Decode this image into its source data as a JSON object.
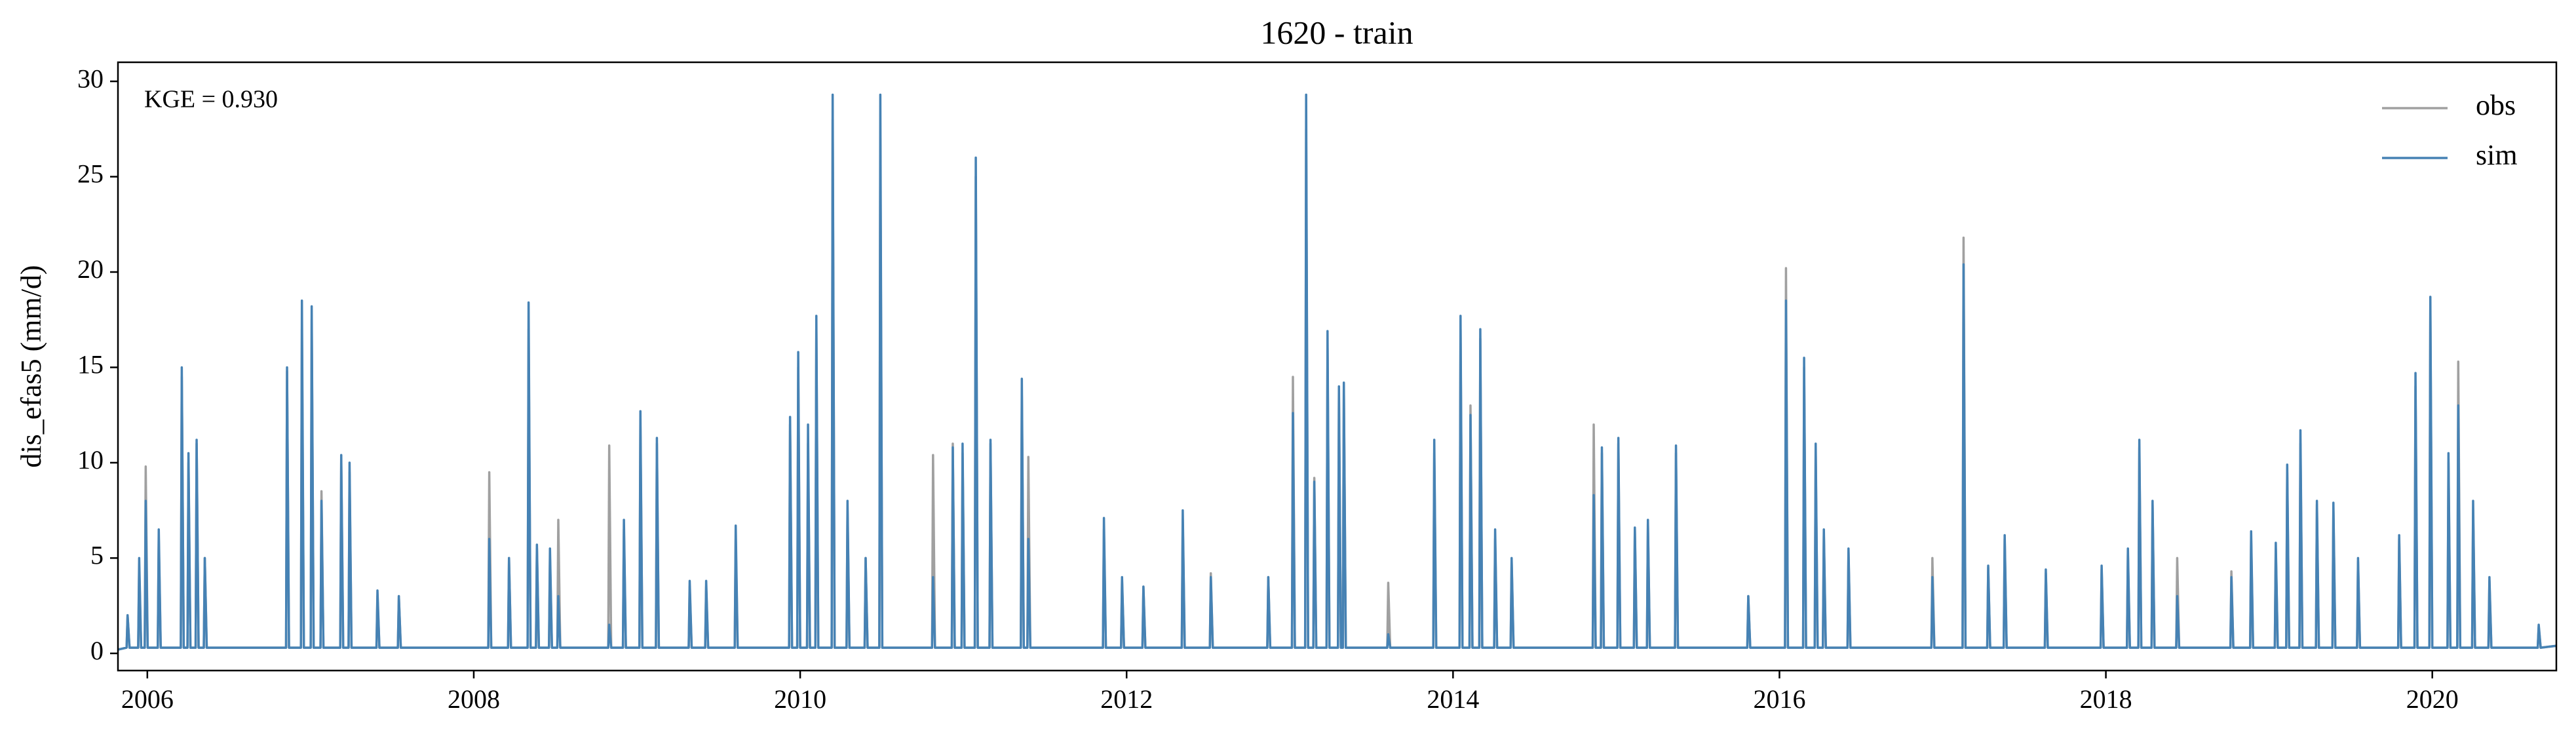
{
  "chart_data": {
    "type": "line",
    "title": "1620 - train",
    "ylabel": "dis_efas5 (mm/d)",
    "annotation": "KGE = 0.930",
    "legend": "upper right",
    "xlim": [
      2005.82,
      2020.76
    ],
    "xticks": [
      2006,
      2008,
      2010,
      2012,
      2014,
      2016,
      2018,
      2020
    ],
    "ylim": [
      -0.9,
      31
    ],
    "yticks": [
      0,
      5,
      10,
      15,
      20,
      25,
      30
    ],
    "x": [
      2005.82,
      2005.873,
      2005.879,
      2005.891,
      2005.944,
      2005.95,
      2005.962,
      2005.984,
      2005.99,
      2006.002,
      2006.064,
      2006.07,
      2006.082,
      2006.205,
      2006.211,
      2006.223,
      2006.246,
      2006.252,
      2006.264,
      2006.296,
      2006.302,
      2006.314,
      2006.346,
      2006.352,
      2006.364,
      2006.85,
      2006.856,
      2006.868,
      2006.941,
      2006.947,
      2006.959,
      2007.001,
      2007.007,
      2007.019,
      2007.061,
      2007.067,
      2007.079,
      2007.182,
      2007.188,
      2007.2,
      2007.233,
      2007.239,
      2007.251,
      2007.404,
      2007.41,
      2007.422,
      2007.535,
      2007.541,
      2007.553,
      2008.089,
      2008.095,
      2008.107,
      2008.21,
      2008.216,
      2008.228,
      2008.33,
      2008.336,
      2008.348,
      2008.381,
      2008.387,
      2008.399,
      2008.461,
      2008.467,
      2008.479,
      2008.512,
      2008.518,
      2008.53,
      2008.824,
      2008.83,
      2008.842,
      2008.914,
      2008.92,
      2008.932,
      2009.015,
      2009.021,
      2009.033,
      2009.116,
      2009.122,
      2009.134,
      2009.317,
      2009.323,
      2009.335,
      2009.418,
      2009.424,
      2009.436,
      2009.599,
      2009.605,
      2009.617,
      2009.932,
      2009.938,
      2009.95,
      2009.982,
      2009.988,
      2010.0,
      2010.042,
      2010.048,
      2010.06,
      2010.093,
      2010.099,
      2010.111,
      2010.193,
      2010.199,
      2010.211,
      2010.284,
      2010.29,
      2010.302,
      2010.395,
      2010.401,
      2010.413,
      2010.485,
      2010.491,
      2010.503,
      2010.808,
      2010.814,
      2010.826,
      2010.929,
      2010.935,
      2010.947,
      2010.989,
      2010.995,
      2011.007,
      2011.07,
      2011.076,
      2011.088,
      2011.16,
      2011.166,
      2011.178,
      2011.352,
      2011.358,
      2011.37,
      2011.392,
      2011.398,
      2011.41,
      2011.855,
      2011.861,
      2011.873,
      2011.966,
      2011.972,
      2011.984,
      2012.097,
      2012.103,
      2012.115,
      2012.338,
      2012.344,
      2012.356,
      2012.51,
      2012.516,
      2012.528,
      2012.862,
      2012.868,
      2012.88,
      2013.013,
      2013.019,
      2013.031,
      2013.094,
      2013.1,
      2013.112,
      2013.144,
      2013.15,
      2013.162,
      2013.225,
      2013.231,
      2013.243,
      2013.295,
      2013.301,
      2013.313,
      2013.325,
      2013.331,
      2013.343,
      2013.597,
      2013.603,
      2013.615,
      2013.879,
      2013.885,
      2013.897,
      2014.04,
      2014.046,
      2014.058,
      2014.101,
      2014.107,
      2014.119,
      2014.161,
      2014.167,
      2014.179,
      2014.252,
      2014.258,
      2014.27,
      2014.353,
      2014.359,
      2014.371,
      2014.856,
      2014.862,
      2014.874,
      2014.906,
      2014.912,
      2014.924,
      2015.007,
      2015.013,
      2015.025,
      2015.108,
      2015.114,
      2015.126,
      2015.188,
      2015.194,
      2015.206,
      2015.36,
      2015.366,
      2015.378,
      2015.803,
      2015.809,
      2015.821,
      2016.034,
      2016.04,
      2016.052,
      2016.145,
      2016.151,
      2016.163,
      2016.216,
      2016.222,
      2016.234,
      2016.266,
      2016.272,
      2016.284,
      2016.417,
      2016.423,
      2016.435,
      2016.931,
      2016.937,
      2016.949,
      2017.122,
      2017.128,
      2017.14,
      2017.273,
      2017.279,
      2017.291,
      2017.374,
      2017.38,
      2017.392,
      2017.626,
      2017.632,
      2017.644,
      2017.968,
      2017.974,
      2017.986,
      2018.129,
      2018.135,
      2018.147,
      2018.199,
      2018.205,
      2018.217,
      2018.28,
      2018.286,
      2018.298,
      2018.431,
      2018.437,
      2018.449,
      2018.763,
      2018.769,
      2018.781,
      2018.884,
      2018.89,
      2018.902,
      2019.035,
      2019.041,
      2019.053,
      2019.105,
      2019.111,
      2019.123,
      2019.186,
      2019.192,
      2019.204,
      2019.287,
      2019.293,
      2019.305,
      2019.388,
      2019.394,
      2019.406,
      2019.539,
      2019.545,
      2019.557,
      2019.791,
      2019.797,
      2019.809,
      2019.891,
      2019.897,
      2019.909,
      2019.982,
      2019.988,
      2020.0,
      2020.093,
      2020.099,
      2020.111,
      2020.153,
      2020.159,
      2020.171,
      2020.244,
      2020.25,
      2020.262,
      2020.344,
      2020.35,
      2020.362,
      2020.646,
      2020.652,
      2020.664,
      2020.76
    ],
    "series": [
      {
        "name": "obs",
        "color": "#a0a0a0",
        "values": [
          0.2,
          0.3,
          2,
          0.3,
          0.3,
          4.5,
          0.3,
          0.3,
          9.8,
          0.3,
          0.3,
          6,
          0.3,
          0.3,
          14.5,
          0.3,
          0.3,
          10,
          0.3,
          0.3,
          11,
          0.3,
          0.3,
          5,
          0.3,
          0.3,
          14.8,
          0.3,
          0.3,
          17,
          0.3,
          0.3,
          17.5,
          0.3,
          0.3,
          8.5,
          0.3,
          0.3,
          10,
          0.3,
          0.3,
          9.5,
          0.3,
          0.3,
          3,
          0.3,
          0.3,
          3,
          0.3,
          0.3,
          9.5,
          0.3,
          0.3,
          5,
          0.3,
          0.3,
          17,
          0.3,
          0.3,
          5.5,
          0.3,
          0.3,
          5,
          0.3,
          0.3,
          7,
          0.3,
          0.3,
          10.9,
          0.3,
          0.3,
          6.5,
          0.3,
          0.3,
          12,
          0.3,
          0.3,
          11,
          0.3,
          0.3,
          3.5,
          0.3,
          0.3,
          3.5,
          0.3,
          0.3,
          6,
          0.3,
          0.3,
          12,
          0.3,
          0.3,
          15,
          0.3,
          0.3,
          11,
          0.3,
          0.3,
          17,
          0.3,
          0.3,
          28,
          0.3,
          0.3,
          7.5,
          0.3,
          0.3,
          5,
          0.3,
          0.3,
          27,
          0.3,
          0.3,
          10.4,
          0.3,
          0.3,
          11,
          0.3,
          0.3,
          10.5,
          0.3,
          0.3,
          25,
          0.3,
          0.3,
          11,
          0.3,
          0.3,
          13.5,
          0.3,
          0.3,
          10.3,
          0.3,
          0.3,
          6.5,
          0.3,
          0.3,
          3.8,
          0.3,
          0.3,
          3.5,
          0.3,
          0.3,
          7,
          0.3,
          0.3,
          4.2,
          0.3,
          0.3,
          4,
          0.3,
          0.3,
          14.5,
          0.3,
          0.3,
          27.5,
          0.3,
          0.3,
          9.2,
          0.3,
          0.3,
          16,
          0.3,
          0.3,
          13.5,
          0.3,
          0.3,
          13.8,
          0.3,
          0.3,
          3.7,
          0.3,
          0.3,
          10.5,
          0.3,
          0.3,
          17,
          0.3,
          0.3,
          13,
          0.3,
          0.3,
          16.5,
          0.3,
          0.3,
          6,
          0.3,
          0.3,
          4.8,
          0.3,
          0.3,
          12,
          0.3,
          0.3,
          10.5,
          0.3,
          0.3,
          11,
          0.3,
          0.3,
          6.5,
          0.3,
          0.3,
          6.8,
          0.3,
          0.3,
          10.5,
          0.3,
          0.3,
          3,
          0.3,
          0.3,
          20.2,
          0.3,
          0.3,
          15,
          0.3,
          0.3,
          10.5,
          0.3,
          0.3,
          6.2,
          0.3,
          0.3,
          5.3,
          0.3,
          0.3,
          5,
          0.3,
          0.3,
          21.8,
          0.3,
          0.3,
          4.5,
          0.3,
          0.3,
          6,
          0.3,
          0.3,
          4.2,
          0.3,
          0.3,
          4.4,
          0.3,
          0.3,
          5.2,
          0.3,
          0.3,
          10.8,
          0.3,
          0.3,
          7.8,
          0.3,
          0.3,
          5,
          0.3,
          0.3,
          4.3,
          0.3,
          0.3,
          6,
          0.3,
          0.3,
          5.5,
          0.3,
          0.3,
          9.5,
          0.3,
          0.3,
          11,
          0.3,
          0.3,
          7.8,
          0.3,
          0.3,
          7.5,
          0.3,
          0.3,
          4.8,
          0.3,
          0.3,
          6,
          0.3,
          0.3,
          14,
          0.3,
          0.3,
          18,
          0.3,
          0.3,
          10,
          0.3,
          0.3,
          15.3,
          0.3,
          0.3,
          7.5,
          0.3,
          0.3,
          3.8,
          0.3,
          0.3,
          1.4,
          0.3,
          0.4
        ]
      },
      {
        "name": "sim",
        "color": "#4682b4",
        "values": [
          0.2,
          0.3,
          2,
          0.3,
          0.3,
          5,
          0.3,
          0.3,
          8,
          0.3,
          0.3,
          6.5,
          0.3,
          0.3,
          15,
          0.3,
          0.3,
          10.5,
          0.3,
          0.3,
          11.2,
          0.3,
          0.3,
          5,
          0.3,
          0.3,
          15,
          0.3,
          0.3,
          18.5,
          0.3,
          0.3,
          18.2,
          0.3,
          0.3,
          8,
          0.3,
          0.3,
          10.4,
          0.3,
          0.3,
          10,
          0.3,
          0.3,
          3.3,
          0.3,
          0.3,
          3,
          0.3,
          0.3,
          6,
          0.3,
          0.3,
          5,
          0.3,
          0.3,
          18.4,
          0.3,
          0.3,
          5.7,
          0.3,
          0.3,
          5.5,
          0.3,
          0.3,
          3,
          0.3,
          0.3,
          1.5,
          0.3,
          0.3,
          7,
          0.3,
          0.3,
          12.7,
          0.3,
          0.3,
          11.3,
          0.3,
          0.3,
          3.8,
          0.3,
          0.3,
          3.8,
          0.3,
          0.3,
          6.7,
          0.3,
          0.3,
          12.4,
          0.3,
          0.3,
          15.8,
          0.3,
          0.3,
          12,
          0.3,
          0.3,
          17.7,
          0.3,
          0.3,
          29.3,
          0.3,
          0.3,
          8,
          0.3,
          0.3,
          5,
          0.3,
          0.3,
          29.3,
          0.3,
          0.3,
          4,
          0.3,
          0.3,
          10.8,
          0.3,
          0.3,
          11,
          0.3,
          0.3,
          26,
          0.3,
          0.3,
          11.2,
          0.3,
          0.3,
          14.4,
          0.3,
          0.3,
          6,
          0.3,
          0.3,
          7.1,
          0.3,
          0.3,
          4,
          0.3,
          0.3,
          3.5,
          0.3,
          0.3,
          7.5,
          0.3,
          0.3,
          4,
          0.3,
          0.3,
          4,
          0.3,
          0.3,
          12.6,
          0.3,
          0.3,
          29.3,
          0.3,
          0.3,
          9,
          0.3,
          0.3,
          16.9,
          0.3,
          0.3,
          14,
          0.3,
          0.3,
          14.2,
          0.3,
          0.3,
          1,
          0.3,
          0.3,
          11.2,
          0.3,
          0.3,
          17.7,
          0.3,
          0.3,
          12.5,
          0.3,
          0.3,
          17,
          0.3,
          0.3,
          6.5,
          0.3,
          0.3,
          5,
          0.3,
          0.3,
          8.3,
          0.3,
          0.3,
          10.8,
          0.3,
          0.3,
          11.3,
          0.3,
          0.3,
          6.6,
          0.3,
          0.3,
          7,
          0.3,
          0.3,
          10.9,
          0.3,
          0.3,
          3,
          0.3,
          0.3,
          18.5,
          0.3,
          0.3,
          15.5,
          0.3,
          0.3,
          11,
          0.3,
          0.3,
          6.5,
          0.3,
          0.3,
          5.5,
          0.3,
          0.3,
          4,
          0.3,
          0.3,
          20.4,
          0.3,
          0.3,
          4.6,
          0.3,
          0.3,
          6.2,
          0.3,
          0.3,
          4.4,
          0.3,
          0.3,
          4.6,
          0.3,
          0.3,
          5.5,
          0.3,
          0.3,
          11.2,
          0.3,
          0.3,
          8,
          0.3,
          0.3,
          3,
          0.3,
          0.3,
          4,
          0.3,
          0.3,
          6.4,
          0.3,
          0.3,
          5.8,
          0.3,
          0.3,
          9.9,
          0.3,
          0.3,
          11.7,
          0.3,
          0.3,
          8,
          0.3,
          0.3,
          7.9,
          0.3,
          0.3,
          5,
          0.3,
          0.3,
          6.2,
          0.3,
          0.3,
          14.7,
          0.3,
          0.3,
          18.7,
          0.3,
          0.3,
          10.5,
          0.3,
          0.3,
          13,
          0.3,
          0.3,
          8,
          0.3,
          0.3,
          4,
          0.3,
          0.3,
          1.5,
          0.3,
          0.4
        ]
      }
    ]
  }
}
